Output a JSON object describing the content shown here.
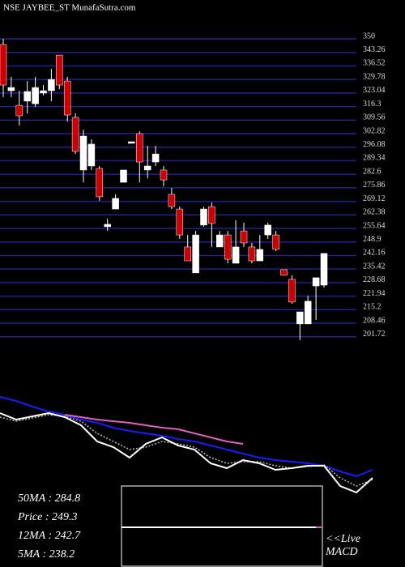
{
  "chart_data": [
    {
      "type": "candlestick",
      "title": "NSE JAYBEE_ST MunafaSutra.com",
      "up_color": "#ffffff",
      "down_color": "#cc0000",
      "grid_color": "#22228f",
      "ylim": [
        200,
        350
      ],
      "yticks": [
        350,
        343.26,
        336.52,
        329.78,
        323.04,
        316.3,
        309.56,
        302.82,
        296.08,
        289.34,
        282.6,
        275.86,
        269.12,
        262.38,
        255.64,
        248.9,
        242.16,
        235.42,
        228.68,
        221.94,
        215.2,
        208.46,
        201.72
      ],
      "open": [
        347.2,
        324.2,
        316.9,
        319.0,
        317.7,
        323.0,
        324.2,
        341.9,
        329.0,
        310.9,
        284.7,
        286.7,
        285.5,
        256.5,
        265.3,
        278.6,
        298.0,
        302.8,
        284.7,
        288.7,
        284.7,
        272.6,
        265.3,
        246.4,
        233.5,
        257.3,
        266.5,
        246.4,
        252.4,
        238.3,
        254.4,
        246.4,
        239.5,
        252.4,
        252.4,
        235.1,
        230.3,
        208.1,
        208.1,
        227.0,
        227.4
      ],
      "high": [
        350,
        331.1,
        324.2,
        329.0,
        331.1,
        327.0,
        335.1,
        341.9,
        331.1,
        312.9,
        304.8,
        300.0,
        286.7,
        260.5,
        272.6,
        284.7,
        298.8,
        304.0,
        296.8,
        296.8,
        286.7,
        275.8,
        266.5,
        252.4,
        254.4,
        266.5,
        268.6,
        254.4,
        254.4,
        259.7,
        258.5,
        248.4,
        252.4,
        258.5,
        254.4,
        235.1,
        232.3,
        214.1,
        222.2,
        231.1,
        243.2
      ],
      "low": [
        321.0,
        321.0,
        306.9,
        312.9,
        316.1,
        321.8,
        319.0,
        325.0,
        308.9,
        292.7,
        278.6,
        284.7,
        269.4,
        254.4,
        265.3,
        278.6,
        298.0,
        278.6,
        280.6,
        286.7,
        276.6,
        265.3,
        250.4,
        239.5,
        233.5,
        256.5,
        246.4,
        246.4,
        238.3,
        238.3,
        246.4,
        238.3,
        239.5,
        250.4,
        244.4,
        232.3,
        218.2,
        200.0,
        208.1,
        210.1,
        226.2
      ],
      "close": [
        327.0,
        325.8,
        311.7,
        323.8,
        325.8,
        324.2,
        329.8,
        327.0,
        312.1,
        294.0,
        301.6,
        297.6,
        271.4,
        257.7,
        270.6,
        284.7,
        298.8,
        288.7,
        286.7,
        292.7,
        279.8,
        266.5,
        252.4,
        239.5,
        252.4,
        265.3,
        258.1,
        252.4,
        240.3,
        246.4,
        248.4,
        239.5,
        245.2,
        257.3,
        245.2,
        232.3,
        219.0,
        214.1,
        219.4,
        231.1,
        243.2
      ]
    },
    {
      "type": "line",
      "x": [
        0,
        2,
        4,
        6,
        8,
        10,
        12,
        14,
        16,
        18,
        20,
        22,
        24,
        26,
        28,
        30,
        32,
        34,
        36,
        38,
        40,
        42,
        44,
        46
      ],
      "xlim": [
        0,
        50
      ],
      "ylim": [
        200,
        340
      ],
      "series": [
        {
          "color": "#1a1aff",
          "values": [
            321.3,
            316.7,
            310.1,
            304.5,
            300.8,
            295.2,
            291.5,
            285.9,
            282.1,
            279.3,
            276.5,
            272.8,
            270.0,
            265.3,
            260.7,
            256.0,
            251.3,
            248.5,
            246.7,
            244.8,
            242.0,
            235.5,
            229.9,
            237.3
          ]
        },
        {
          "color": "#e060c0",
          "values": [
            null,
            null,
            null,
            null,
            300.8,
            298.0,
            295.2,
            293.3,
            291.5,
            288.7,
            285.9,
            284.1,
            279.3,
            274.7,
            270.0,
            267.2,
            null,
            null,
            null,
            null,
            null,
            null,
            null,
            null
          ]
        },
        {
          "color": "#bbbbbb",
          "dashed": true,
          "values": [
            298.0,
            293.3,
            297.1,
            300.8,
            298.9,
            293.3,
            279.3,
            270.0,
            260.7,
            263.5,
            270.0,
            267.2,
            263.5,
            251.3,
            244.8,
            246.7,
            246.7,
            242.0,
            239.2,
            241.1,
            243.0,
            228.0,
            218.7,
            226.2
          ]
        },
        {
          "color": "#ffffff",
          "values": [
            302.7,
            295.2,
            298.9,
            302.7,
            298.0,
            288.7,
            270.0,
            263.5,
            251.3,
            267.2,
            274.7,
            265.3,
            260.7,
            244.8,
            239.2,
            248.5,
            244.8,
            237.3,
            239.2,
            242.0,
            242.0,
            218.7,
            211.2,
            228.0
          ]
        }
      ],
      "info": [
        "50MA : 284.8",
        "Price  : 249.3",
        "12MA : 242.7",
        "5MA : 238.2"
      ],
      "macd_label": [
        "<<Live",
        "MACD"
      ]
    }
  ]
}
